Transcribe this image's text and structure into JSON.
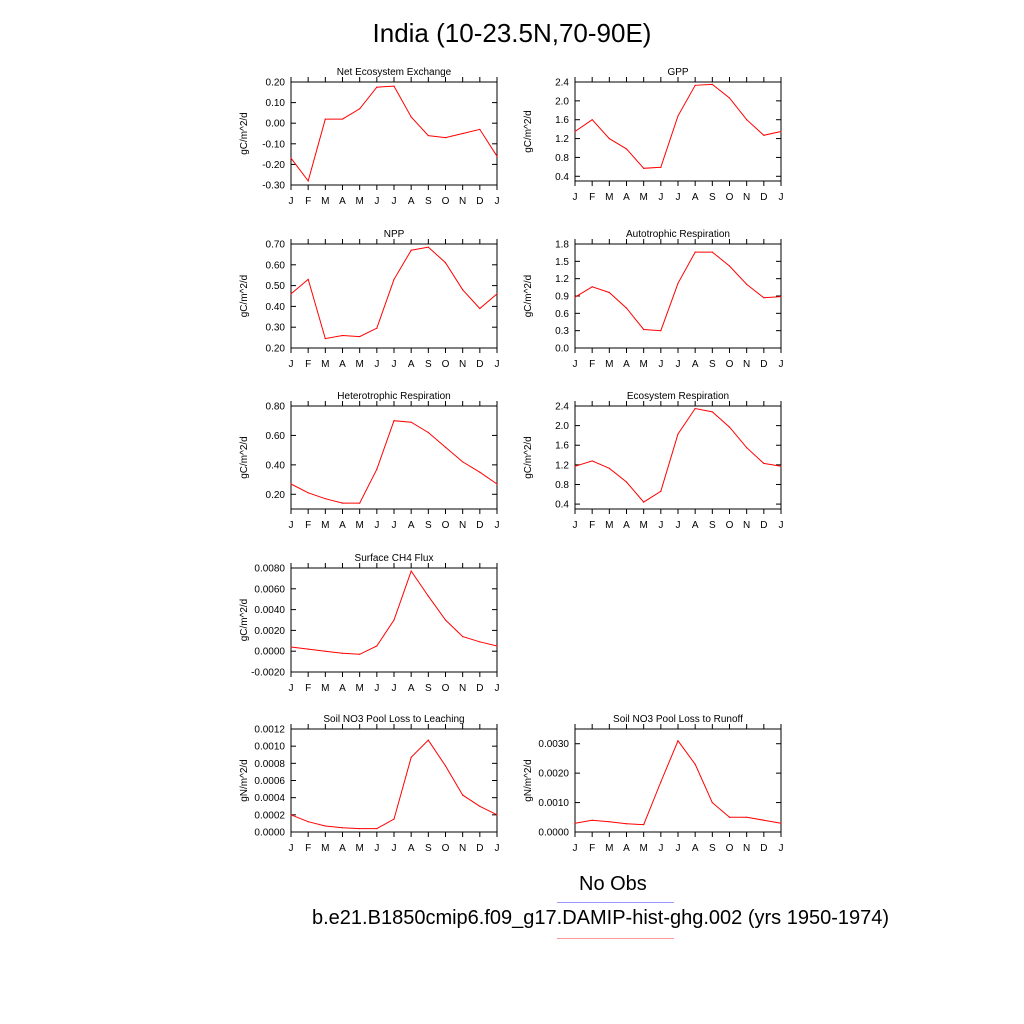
{
  "title": "India (10-23.5N,70-90E)",
  "months": [
    "J",
    "F",
    "M",
    "A",
    "M",
    "J",
    "J",
    "A",
    "S",
    "O",
    "N",
    "D",
    "J"
  ],
  "colors": {
    "model": "#ff0000",
    "obs": "#9999ff",
    "model_legend": "#ff9999",
    "axis": "#000000"
  },
  "chart_data": [
    {
      "type": "line",
      "title": "Net Ecosystem Exchange",
      "ylabel": "gC/m^2/d",
      "ylim": [
        -0.3,
        0.2
      ],
      "yticks": [
        "0.20",
        "0.10",
        "0.00",
        "-0.10",
        "-0.20",
        "-0.30"
      ],
      "ytick_values": [
        0.2,
        0.1,
        0.0,
        -0.1,
        -0.2,
        -0.3
      ],
      "series": [
        {
          "values": [
            -0.17,
            -0.28,
            0.02,
            0.02,
            0.07,
            0.175,
            0.18,
            0.03,
            -0.06,
            -0.07,
            -0.05,
            -0.03,
            -0.16
          ]
        }
      ]
    },
    {
      "type": "line",
      "title": "GPP",
      "ylabel": "gC/m^2/d",
      "ylim": [
        0.3,
        2.4
      ],
      "yticks": [
        "2.4",
        "2.0",
        "1.6",
        "1.2",
        "0.8",
        "0.4"
      ],
      "ytick_values": [
        2.4,
        2.0,
        1.6,
        1.2,
        0.8,
        0.4
      ],
      "series": [
        {
          "values": [
            1.35,
            1.6,
            1.2,
            0.98,
            0.57,
            0.59,
            1.68,
            2.33,
            2.35,
            2.06,
            1.6,
            1.27,
            1.35
          ]
        }
      ]
    },
    {
      "type": "line",
      "title": "NPP",
      "ylabel": "gC/m^2/d",
      "ylim": [
        0.2,
        0.7
      ],
      "yticks": [
        "0.70",
        "0.60",
        "0.50",
        "0.40",
        "0.30",
        "0.20"
      ],
      "ytick_values": [
        0.7,
        0.6,
        0.5,
        0.4,
        0.3,
        0.2
      ],
      "series": [
        {
          "values": [
            0.46,
            0.53,
            0.245,
            0.26,
            0.255,
            0.295,
            0.53,
            0.67,
            0.685,
            0.61,
            0.48,
            0.39,
            0.46
          ]
        }
      ]
    },
    {
      "type": "line",
      "title": "Autotrophic Respiration",
      "ylabel": "gC/m^2/d",
      "ylim": [
        0.0,
        1.8
      ],
      "yticks": [
        "1.8",
        "1.5",
        "1.2",
        "0.9",
        "0.6",
        "0.3",
        "0.0"
      ],
      "ytick_values": [
        1.8,
        1.5,
        1.2,
        0.9,
        0.6,
        0.3,
        0.0
      ],
      "series": [
        {
          "values": [
            0.88,
            1.06,
            0.96,
            0.69,
            0.32,
            0.3,
            1.12,
            1.66,
            1.66,
            1.42,
            1.1,
            0.87,
            0.89
          ]
        }
      ]
    },
    {
      "type": "line",
      "title": "Heterotrophic Respiration",
      "ylabel": "gC/m^2/d",
      "ylim": [
        0.1,
        0.8
      ],
      "yticks": [
        "0.80",
        "0.60",
        "0.40",
        "0.20"
      ],
      "ytick_values": [
        0.8,
        0.6,
        0.4,
        0.2
      ],
      "series": [
        {
          "values": [
            0.27,
            0.21,
            0.17,
            0.14,
            0.14,
            0.37,
            0.7,
            0.69,
            0.62,
            0.52,
            0.42,
            0.35,
            0.27
          ]
        }
      ]
    },
    {
      "type": "line",
      "title": "Ecosystem Respiration",
      "ylabel": "gC/m^2/d",
      "ylim": [
        0.3,
        2.4
      ],
      "yticks": [
        "2.4",
        "2.0",
        "1.6",
        "1.2",
        "0.8",
        "0.4"
      ],
      "ytick_values": [
        2.4,
        2.0,
        1.6,
        1.2,
        0.8,
        0.4
      ],
      "series": [
        {
          "values": [
            1.17,
            1.28,
            1.13,
            0.85,
            0.44,
            0.66,
            1.83,
            2.35,
            2.28,
            1.97,
            1.55,
            1.23,
            1.17
          ]
        }
      ]
    },
    {
      "type": "line",
      "title": "Surface CH4 Flux",
      "ylabel": "gC/m^2/d",
      "ylim": [
        -0.002,
        0.008
      ],
      "yticks": [
        "0.0080",
        "0.0060",
        "0.0040",
        "0.0020",
        "0.0000",
        "-0.0020"
      ],
      "ytick_values": [
        0.008,
        0.006,
        0.004,
        0.002,
        0.0,
        -0.002
      ],
      "series": [
        {
          "values": [
            0.0004,
            0.0002,
            0.0,
            -0.0002,
            -0.0003,
            0.0005,
            0.003,
            0.0077,
            0.0053,
            0.003,
            0.0014,
            0.0009,
            0.0005
          ]
        }
      ]
    },
    {
      "type": "line",
      "title": "Soil NO3 Pool Loss to Leaching",
      "ylabel": "gN/m^2/d",
      "ylim": [
        0.0,
        0.0012
      ],
      "yticks": [
        "0.0012",
        "0.0010",
        "0.0008",
        "0.0006",
        "0.0004",
        "0.0002",
        "0.0000"
      ],
      "ytick_values": [
        0.0012,
        0.001,
        0.0008,
        0.0006,
        0.0004,
        0.0002,
        0.0
      ],
      "series": [
        {
          "values": [
            0.0002,
            0.00012,
            7e-05,
            5e-05,
            4e-05,
            4e-05,
            0.00015,
            0.00087,
            0.00107,
            0.00077,
            0.00043,
            0.0003,
            0.0002
          ]
        }
      ]
    },
    {
      "type": "line",
      "title": "Soil NO3 Pool Loss to Runoff",
      "ylabel": "gN/m^2/d",
      "ylim": [
        0.0,
        0.0035
      ],
      "yticks": [
        "0.0030",
        "0.0020",
        "0.0010",
        "0.0000"
      ],
      "ytick_values": [
        0.003,
        0.002,
        0.001,
        0.0
      ],
      "series": [
        {
          "values": [
            0.0003,
            0.0004,
            0.00035,
            0.00028,
            0.00025,
            0.0017,
            0.0031,
            0.0023,
            0.001,
            0.0005,
            0.0005,
            0.0004,
            0.0003
          ]
        }
      ]
    }
  ],
  "legend": {
    "obs_label": "No Obs",
    "model_label": "b.e21.B1850cmip6.f09_g17.DAMIP-hist-ghg.002 (yrs 1950-1974)"
  }
}
